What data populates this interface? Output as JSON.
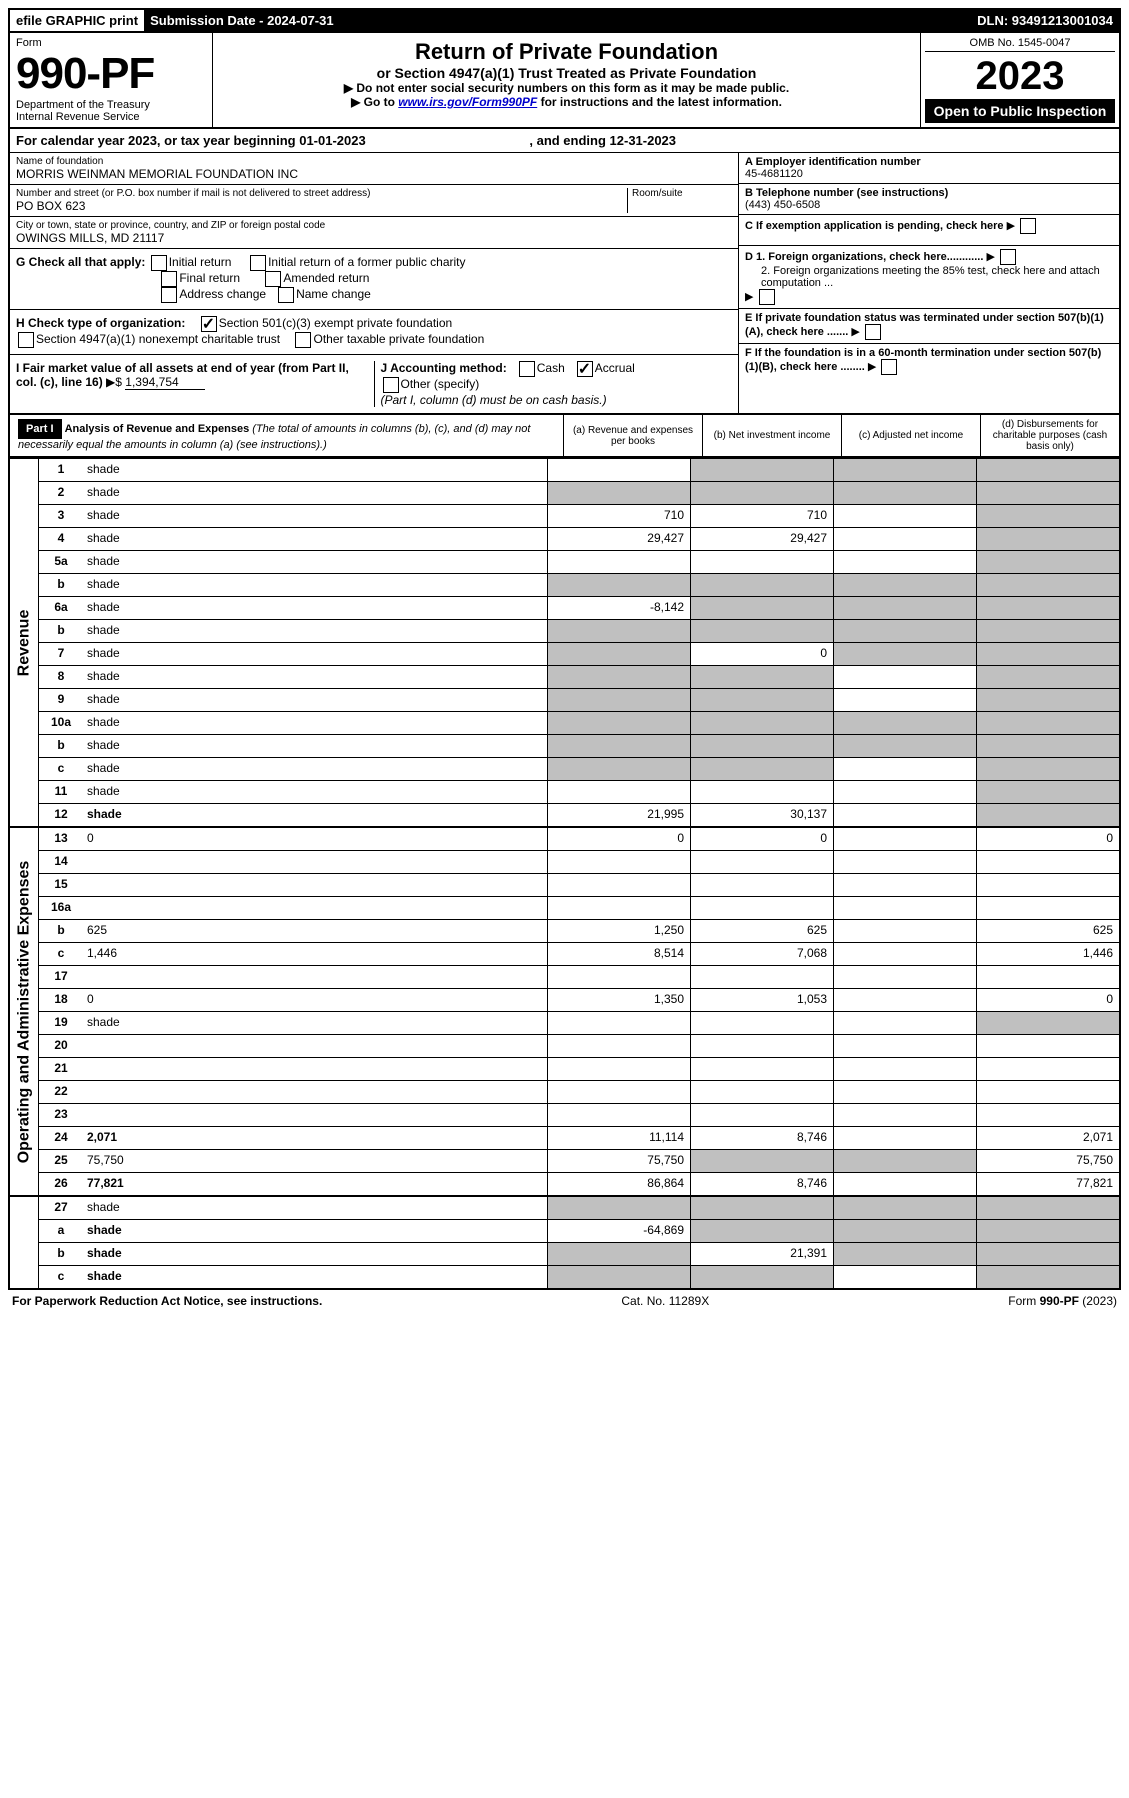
{
  "topbar": {
    "efile": "efile GRAPHIC print",
    "submission_label": "Submission Date - 2024-07-31",
    "dln": "DLN: 93491213001034"
  },
  "header": {
    "form_label": "Form",
    "form_number": "990-PF",
    "dept": "Department of the Treasury",
    "irs": "Internal Revenue Service",
    "title": "Return of Private Foundation",
    "subtitle": "or Section 4947(a)(1) Trust Treated as Private Foundation",
    "instr1": "▶ Do not enter social security numbers on this form as it may be made public.",
    "instr2_prefix": "▶ Go to ",
    "instr2_link": "www.irs.gov/Form990PF",
    "instr2_suffix": " for instructions and the latest information.",
    "omb": "OMB No. 1545-0047",
    "year": "2023",
    "open": "Open to Public Inspection"
  },
  "calendar": {
    "text": "For calendar year 2023, or tax year beginning 01-01-2023",
    "ending": ", and ending 12-31-2023"
  },
  "foundation": {
    "name_label": "Name of foundation",
    "name": "MORRIS WEINMAN MEMORIAL FOUNDATION INC",
    "address_label": "Number and street (or P.O. box number if mail is not delivered to street address)",
    "address": "PO BOX 623",
    "room_label": "Room/suite",
    "city_label": "City or town, state or province, country, and ZIP or foreign postal code",
    "city": "OWINGS MILLS, MD  21117",
    "ein_label": "A Employer identification number",
    "ein": "45-4681120",
    "phone_label": "B Telephone number (see instructions)",
    "phone": "(443) 450-6508",
    "c_label": "C If exemption application is pending, check here",
    "d1_label": "D 1. Foreign organizations, check here............",
    "d2_label": "2. Foreign organizations meeting the 85% test, check here and attach computation ...",
    "e_label": "E  If private foundation status was terminated under section 507(b)(1)(A), check here .......",
    "f_label": "F  If the foundation is in a 60-month termination under section 507(b)(1)(B), check here ........"
  },
  "checks": {
    "g_label": "G Check all that apply:",
    "initial": "Initial return",
    "initial_former": "Initial return of a former public charity",
    "final": "Final return",
    "amended": "Amended return",
    "address": "Address change",
    "name": "Name change",
    "h_label": "H Check type of organization:",
    "h_501c3": "Section 501(c)(3) exempt private foundation",
    "h_4947": "Section 4947(a)(1) nonexempt charitable trust",
    "h_other": "Other taxable private foundation",
    "i_label": "I Fair market value of all assets at end of year (from Part II, col. (c), line 16)",
    "i_value": "1,394,754",
    "j_label": "J Accounting method:",
    "j_cash": "Cash",
    "j_accrual": "Accrual",
    "j_other": "Other (specify)",
    "j_note": "(Part I, column (d) must be on cash basis.)"
  },
  "part1": {
    "label": "Part I",
    "title": "Analysis of Revenue and Expenses",
    "note": "(The total of amounts in columns (b), (c), and (d) may not necessarily equal the amounts in column (a) (see instructions).)",
    "col_a": "(a)  Revenue and expenses per books",
    "col_b": "(b)  Net investment income",
    "col_c": "(c)  Adjusted net income",
    "col_d": "(d)  Disbursements for charitable purposes (cash basis only)"
  },
  "side_labels": {
    "revenue": "Revenue",
    "expenses": "Operating and Administrative Expenses"
  },
  "rows": [
    {
      "n": "1",
      "d": "shade",
      "a": "",
      "b": "shade",
      "c": "shade"
    },
    {
      "n": "2",
      "d": "shade",
      "a": "shade",
      "b": "shade",
      "c": "shade"
    },
    {
      "n": "3",
      "d": "shade",
      "a": "710",
      "b": "710",
      "c": ""
    },
    {
      "n": "4",
      "d": "shade",
      "a": "29,427",
      "b": "29,427",
      "c": ""
    },
    {
      "n": "5a",
      "d": "shade",
      "a": "",
      "b": "",
      "c": ""
    },
    {
      "n": "b",
      "d": "shade",
      "a": "shade",
      "b": "shade",
      "c": "shade"
    },
    {
      "n": "6a",
      "d": "shade",
      "a": "-8,142",
      "b": "shade",
      "c": "shade"
    },
    {
      "n": "b",
      "d": "shade",
      "a": "shade",
      "b": "shade",
      "c": "shade"
    },
    {
      "n": "7",
      "d": "shade",
      "a": "shade",
      "b": "0",
      "c": "shade"
    },
    {
      "n": "8",
      "d": "shade",
      "a": "shade",
      "b": "shade",
      "c": ""
    },
    {
      "n": "9",
      "d": "shade",
      "a": "shade",
      "b": "shade",
      "c": ""
    },
    {
      "n": "10a",
      "d": "shade",
      "a": "shade",
      "b": "shade",
      "c": "shade"
    },
    {
      "n": "b",
      "d": "shade",
      "a": "shade",
      "b": "shade",
      "c": "shade"
    },
    {
      "n": "c",
      "d": "shade",
      "a": "shade",
      "b": "shade",
      "c": ""
    },
    {
      "n": "11",
      "d": "shade",
      "a": "",
      "b": "",
      "c": ""
    },
    {
      "n": "12",
      "d": "shade",
      "a": "21,995",
      "b": "30,137",
      "c": "",
      "bold": true
    }
  ],
  "exp_rows": [
    {
      "n": "13",
      "d": "0",
      "a": "0",
      "b": "0",
      "c": ""
    },
    {
      "n": "14",
      "d": "",
      "a": "",
      "b": "",
      "c": ""
    },
    {
      "n": "15",
      "d": "",
      "a": "",
      "b": "",
      "c": ""
    },
    {
      "n": "16a",
      "d": "",
      "a": "",
      "b": "",
      "c": ""
    },
    {
      "n": "b",
      "d": "625",
      "a": "1,250",
      "b": "625",
      "c": ""
    },
    {
      "n": "c",
      "d": "1,446",
      "a": "8,514",
      "b": "7,068",
      "c": ""
    },
    {
      "n": "17",
      "d": "",
      "a": "",
      "b": "",
      "c": ""
    },
    {
      "n": "18",
      "d": "0",
      "a": "1,350",
      "b": "1,053",
      "c": ""
    },
    {
      "n": "19",
      "d": "shade",
      "a": "",
      "b": "",
      "c": ""
    },
    {
      "n": "20",
      "d": "",
      "a": "",
      "b": "",
      "c": ""
    },
    {
      "n": "21",
      "d": "",
      "a": "",
      "b": "",
      "c": ""
    },
    {
      "n": "22",
      "d": "",
      "a": "",
      "b": "",
      "c": ""
    },
    {
      "n": "23",
      "d": "",
      "a": "",
      "b": "",
      "c": ""
    },
    {
      "n": "24",
      "d": "2,071",
      "a": "11,114",
      "b": "8,746",
      "c": "",
      "bold": true
    },
    {
      "n": "25",
      "d": "75,750",
      "a": "75,750",
      "b": "shade",
      "c": "shade"
    },
    {
      "n": "26",
      "d": "77,821",
      "a": "86,864",
      "b": "8,746",
      "c": "",
      "bold": true
    }
  ],
  "bottom_rows": [
    {
      "n": "27",
      "d": "shade",
      "a": "shade",
      "b": "shade",
      "c": "shade"
    },
    {
      "n": "a",
      "d": "shade",
      "a": "-64,869",
      "b": "shade",
      "c": "shade",
      "bold": true
    },
    {
      "n": "b",
      "d": "shade",
      "a": "shade",
      "b": "21,391",
      "c": "shade",
      "bold": true
    },
    {
      "n": "c",
      "d": "shade",
      "a": "shade",
      "b": "shade",
      "c": "",
      "bold": true
    }
  ],
  "footer": {
    "left": "For Paperwork Reduction Act Notice, see instructions.",
    "center": "Cat. No. 11289X",
    "right": "Form 990-PF (2023)"
  }
}
